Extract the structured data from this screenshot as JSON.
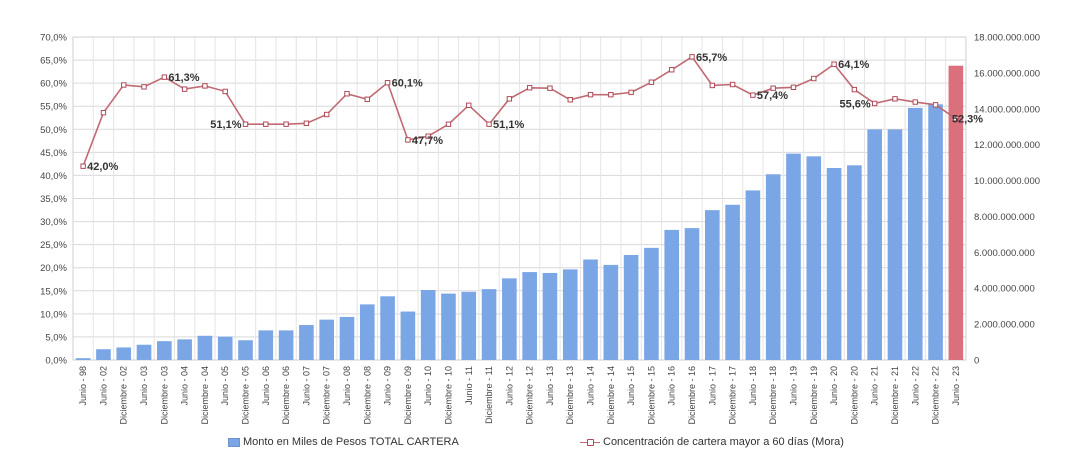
{
  "chart_data": {
    "type": "bar",
    "categories": [
      "Junio - 98",
      "Junio - 02",
      "Diciembre - 02",
      "Junio - 03",
      "Diciembre - 03",
      "Junio - 04",
      "Diciembre - 04",
      "Junio - 05",
      "Diciembre - 05",
      "Junio - 06",
      "Diciembre - 06",
      "Junio - 07",
      "Diciembre - 07",
      "Junio - 08",
      "Diciembre - 08",
      "Junio - 09",
      "Diciembre - 09",
      "Junio - 10",
      "Diciembre - 10",
      "Junio - 11",
      "Diciembre - 11",
      "Junio - 12",
      "Diciembre - 12",
      "Junio - 13",
      "Diciembre - 13",
      "Junio - 14",
      "Diciembre - 14",
      "Junio - 15",
      "Diciembre - 15",
      "Junio - 16",
      "Diciembre - 16",
      "Junio - 17",
      "Diciembre - 17",
      "Junio - 18",
      "Diciembre - 18",
      "Junio - 19",
      "Diciembre - 19",
      "Junio - 20",
      "Diciembre - 20",
      "Junio - 21",
      "Diciembre - 21",
      "Junio - 22",
      "Diciembre - 22",
      "Junio - 23"
    ],
    "series": [
      {
        "name": "Monto en Miles de Pesos TOTAL CARTERA",
        "type": "bar",
        "axis": "right",
        "color": "#7aa6e6",
        "highlight_color": "#d9707c",
        "highlight_index": 43,
        "values": [
          100000000,
          600000000,
          700000000,
          850000000,
          1050000000,
          1150000000,
          1350000000,
          1300000000,
          1100000000,
          1650000000,
          1650000000,
          1950000000,
          2250000000,
          2400000000,
          3100000000,
          3550000000,
          2700000000,
          3900000000,
          3700000000,
          3800000000,
          3950000000,
          4550000000,
          4900000000,
          4850000000,
          5050000000,
          5600000000,
          5300000000,
          5850000000,
          6250000000,
          7250000000,
          7350000000,
          8350000000,
          8650000000,
          9450000000,
          10350000000,
          11500000000,
          11350000000,
          10700000000,
          10850000000,
          12850000000,
          12850000000,
          14050000000,
          14250000000,
          16400000000
        ]
      },
      {
        "name": "Concentración de cartera mayor a 60 días (Mora)",
        "type": "line",
        "axis": "left",
        "color": "#c06a74",
        "values": [
          42.0,
          53.6,
          59.6,
          59.2,
          61.3,
          58.7,
          59.4,
          58.2,
          51.1,
          51.1,
          51.1,
          51.3,
          53.2,
          57.7,
          56.5,
          60.1,
          47.7,
          48.5,
          51.1,
          55.2,
          51.1,
          56.6,
          59.0,
          58.9,
          56.4,
          57.5,
          57.5,
          58.0,
          60.2,
          62.9,
          65.7,
          59.5,
          59.7,
          57.4,
          58.9,
          59.1,
          61.0,
          64.1,
          58.6,
          55.6,
          56.6,
          55.9,
          55.3,
          52.3
        ]
      }
    ],
    "labels": [
      {
        "index": 0,
        "text": "42,0%",
        "anchor": "start"
      },
      {
        "index": 4,
        "text": "61,3%",
        "anchor": "start"
      },
      {
        "index": 8,
        "text": "51,1%",
        "anchor": "end"
      },
      {
        "index": 15,
        "text": "60,1%",
        "anchor": "start"
      },
      {
        "index": 16,
        "text": "47,7%",
        "anchor": "start"
      },
      {
        "index": 20,
        "text": "51,1%",
        "anchor": "start"
      },
      {
        "index": 30,
        "text": "65,7%",
        "anchor": "start"
      },
      {
        "index": 33,
        "text": "57,4%",
        "anchor": "start"
      },
      {
        "index": 37,
        "text": "64,1%",
        "anchor": "start"
      },
      {
        "index": 39,
        "text": "55,6%",
        "anchor": "end"
      },
      {
        "index": 43,
        "text": "52,3%",
        "anchor": "middle"
      }
    ],
    "y_left": {
      "ticks": [
        0,
        5,
        10,
        15,
        20,
        25,
        30,
        35,
        40,
        45,
        50,
        55,
        60,
        65,
        70
      ],
      "tick_labels": [
        "0,0%",
        "5,0%",
        "10,0%",
        "15,0%",
        "20,0%",
        "25,0%",
        "30,0%",
        "35,0%",
        "40,0%",
        "45,0%",
        "50,0%",
        "55,0%",
        "60,0%",
        "65,0%",
        "70,0%"
      ],
      "ylim": [
        0,
        70
      ]
    },
    "y_right": {
      "ticks": [
        0,
        2000000000,
        4000000000,
        6000000000,
        8000000000,
        10000000000,
        12000000000,
        14000000000,
        16000000000,
        18000000000
      ],
      "tick_labels": [
        "0",
        "2.000.000.000",
        "4.000.000.000",
        "6.000.000.000",
        "8.000.000.000",
        "10.000.000.000",
        "12.000.000.000",
        "14.000.000.000",
        "16.000.000.000",
        "18.000.000.000"
      ],
      "ylim": [
        0,
        18000000000
      ]
    },
    "grid": true,
    "legend": "bottom"
  },
  "legend": {
    "bar_label": "Monto en Miles de Pesos TOTAL CARTERA",
    "line_label": "Concentración de cartera mayor a 60 días (Mora)"
  }
}
